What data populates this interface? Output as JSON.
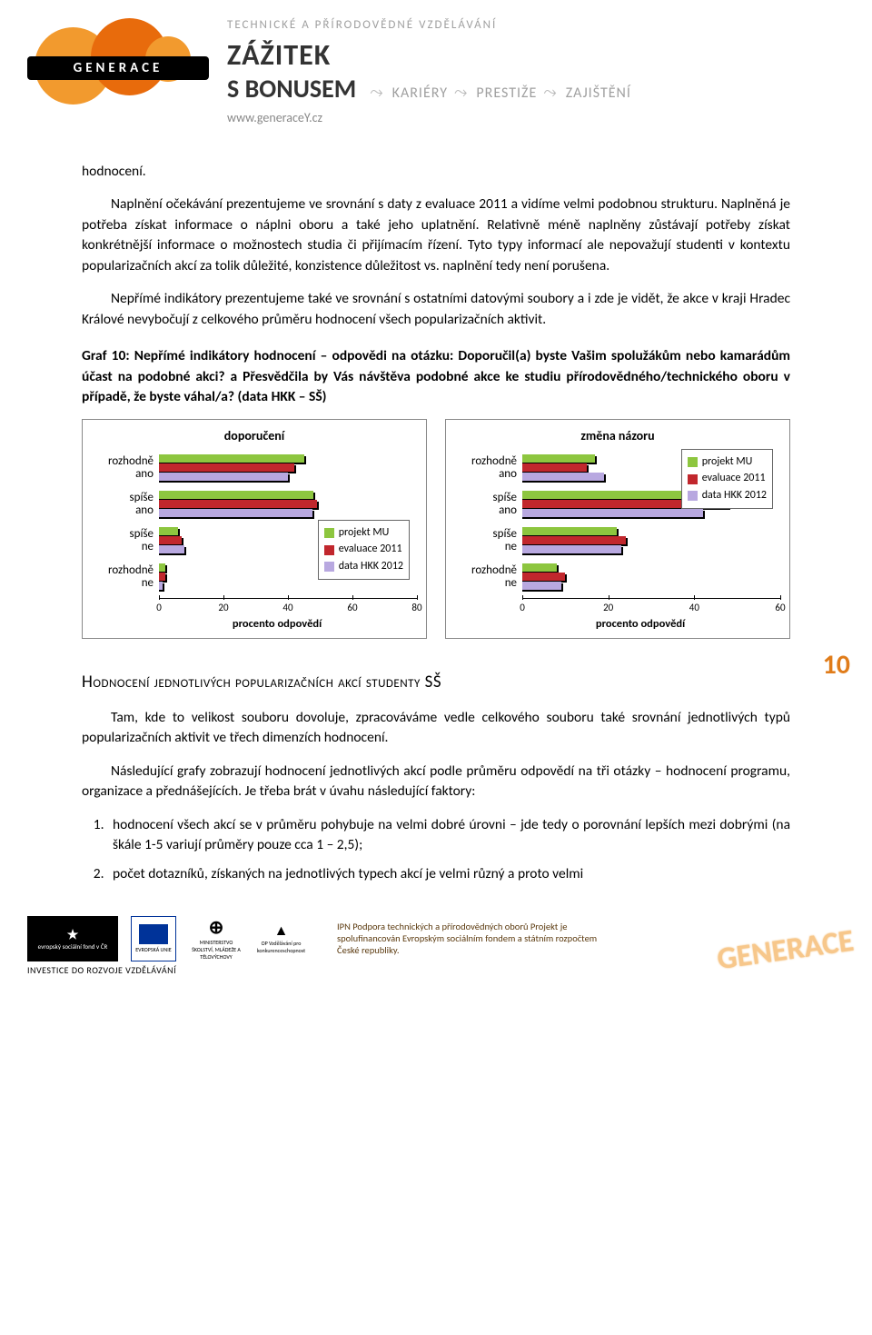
{
  "header": {
    "logo_text": "GENERACE",
    "subtitle": "TECHNICKÉ A PŘÍRODOVĚDNÉ VZDĚLÁVÁNÍ",
    "title1": "ZÁŽITEK",
    "title2": "S BONUSEM",
    "kw1": "KARIÉRY",
    "kw2": "PRESTIŽE",
    "kw3": "ZAJIŠTĚNÍ",
    "url": "www.generaceY.cz"
  },
  "body": {
    "p0": "hodnocení.",
    "p1": "Naplnění očekávání prezentujeme ve srovnání s daty z evaluace 2011 a vidíme velmi podobnou strukturu. Naplněná je potřeba získat informace o náplni oboru a také jeho uplatnění. Relativně méně naplněny zůstávají potřeby získat konkrétnější informace o možnostech studia či přijímacím řízení. Tyto typy informací ale nepovažují studenti v kontextu popularizačních akcí za tolik důležité, konzistence důležitost vs. naplnění tedy není porušena.",
    "p2": "Nepřímé indikátory prezentujeme také ve srovnání s ostatními datovými soubory a i zde je vidět, že akce v kraji Hradec Králové nevybočují z celkového průměru hodnocení všech popularizačních aktivit.",
    "chart_title": "Graf 10: Nepřímé indikátory hodnocení – odpovědi na otázku: Doporučil(a) byste Vašim spolužákům nebo kamarádům účast na podobné akci? a Přesvědčila by Vás návštěva podobné akce ke studiu přírodovědného/technického oboru v případě, že byste váhal/a? (data HKK – SŠ)"
  },
  "page_number": "10",
  "chart1": {
    "title": "doporučení",
    "xmax": 80,
    "xticks": [
      0,
      20,
      40,
      60,
      80
    ],
    "xlabel": "procento odpovědí",
    "categories": [
      "rozhodně ano",
      "spíše ano",
      "spíše ne",
      "rozhodně ne"
    ],
    "series": {
      "projekt_MU": [
        45,
        48,
        6,
        2
      ],
      "evaluace_2011": [
        42,
        49,
        7,
        2
      ],
      "data_HKK_2012": [
        40,
        47.5,
        8,
        1
      ]
    },
    "colors": {
      "projekt_MU": "#8dc63f",
      "evaluace_2011": "#c1272d",
      "data_HKK_2012": "#b8a8e0"
    },
    "legend_labels": [
      "projekt MU",
      "evaluace 2011",
      "data HKK 2012"
    ],
    "legend_pos": "bottom-right"
  },
  "chart2": {
    "title": "změna názoru",
    "xmax": 60,
    "xticks": [
      0,
      20,
      40,
      60
    ],
    "xlabel": "procento odpovědí",
    "categories": [
      "rozhodně ano",
      "spíše ano",
      "spíše ne",
      "rozhodně ne"
    ],
    "series": {
      "projekt_MU": [
        17,
        50,
        22,
        8
      ],
      "evaluace_2011": [
        15,
        48,
        24,
        10
      ],
      "data_HKK_2012": [
        19,
        42,
        23,
        9
      ]
    },
    "colors": {
      "projekt_MU": "#8dc63f",
      "evaluace_2011": "#c1272d",
      "data_HKK_2012": "#b8a8e0"
    },
    "legend_labels": [
      "projekt MU",
      "evaluace 2011",
      "data HKK 2012"
    ],
    "legend_pos": "top-right"
  },
  "section2": {
    "heading": "Hodnocení jednotlivých popularizačních akcí studenty SŠ",
    "p1": "Tam, kde to velikost souboru dovoluje, zpracováváme vedle celkového souboru také srovnání jednotlivých typů popularizačních aktivit ve třech dimenzích hodnocení.",
    "p2": "Následující grafy zobrazují hodnocení jednotlivých akcí podle průměru odpovědí na tři otázky – hodnocení programu, organizace a přednášejících. Je třeba brát v úvahu následující faktory:",
    "li1": "hodnocení všech akcí se v průměru pohybuje na velmi dobré úrovni – jde tedy o porovnání lepších mezi dobrými (na škále 1-5 variují průměry pouze cca 1 – 2,5);",
    "li2": "počet dotazníků, získaných na jednotlivých typech akcí je velmi různý a proto velmi"
  },
  "footer": {
    "esf_top": "evropský sociální fond v ČR",
    "eu_label": "EVROPSKÁ UNIE",
    "msmt": "MINISTERSTVO ŠKOLSTVÍ, MLÁDEŽE A TĚLOVÝCHOVY",
    "op": "OP Vzdělávání pro konkurenceschopnost",
    "invest": "INVESTICE DO ROZVOJE VZDĚLÁVÁNÍ",
    "text": "IPN Podpora technických a přírodovědných oborů Projekt je spolufinancován Evropským sociálním fondem a státním rozpočtem České republiky.",
    "wm": "GENERACE"
  }
}
